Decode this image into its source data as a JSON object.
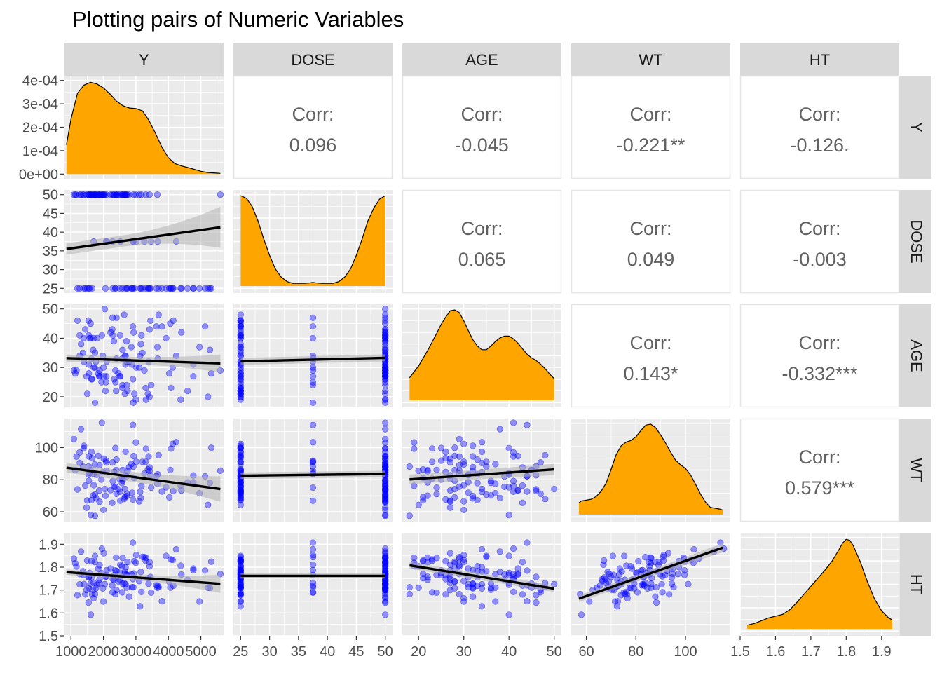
{
  "title": "Plotting pairs of Numeric Variables",
  "colors": {
    "panel_bg": "#ebebeb",
    "grid_major": "#ffffff",
    "strip_bg": "#d9d9d9",
    "density_fill": "#ffa500",
    "point": "#0000ff",
    "regression_line": "#000000",
    "ci_band": "#b3b3b3",
    "corr_text": "#616161",
    "tick_text": "#4d4d4d"
  },
  "chart_data": {
    "type": "scatter",
    "variables": [
      "Y",
      "DOSE",
      "AGE",
      "WT",
      "HT"
    ],
    "axes": {
      "Y": {
        "range": [
          800,
          5700
        ],
        "ticks": [
          1000,
          2000,
          3000,
          4000,
          5000
        ],
        "tick_labels": [
          "1000",
          "2000",
          "3000",
          "4000",
          "5000"
        ]
      },
      "DOSE": {
        "range": [
          23.75,
          51.25
        ],
        "ticks": [
          25,
          30,
          35,
          40,
          45,
          50
        ],
        "tick_labels": [
          "25",
          "30",
          "35",
          "40",
          "45",
          "50"
        ]
      },
      "AGE": {
        "range": [
          16.4,
          51.6
        ],
        "ticks": [
          20,
          30,
          40,
          50
        ],
        "tick_labels": [
          "20",
          "30",
          "40",
          "50"
        ]
      },
      "WT": {
        "range": [
          53.9,
          118.1
        ],
        "ticks": [
          60,
          80,
          100
        ],
        "tick_labels": [
          "60",
          "80",
          "100"
        ]
      },
      "HT": {
        "range": [
          1.5,
          1.95
        ],
        "ticks": [
          1.5,
          1.6,
          1.7,
          1.8,
          1.9
        ],
        "tick_labels": [
          "1.5",
          "1.6",
          "1.7",
          "1.8",
          "1.9"
        ]
      }
    },
    "density_y_axis": {
      "range": [
        -2e-05,
        0.00042
      ],
      "ticks": [
        0,
        0.0001,
        0.0002,
        0.0003,
        0.0004
      ],
      "tick_labels": [
        "0e+00",
        "1e-04",
        "2e-04",
        "3e-04",
        "4e-04"
      ]
    },
    "densities": {
      "Y": {
        "x": [
          860,
          1000,
          1200,
          1400,
          1600,
          1800,
          2000,
          2200,
          2400,
          2600,
          2800,
          3000,
          3200,
          3400,
          3600,
          3800,
          4000,
          4200,
          4400,
          4600,
          4800,
          5000,
          5200,
          5400,
          5600
        ],
        "y": [
          0.000125,
          0.000235,
          0.000345,
          0.00038,
          0.000392,
          0.000385,
          0.000368,
          0.000342,
          0.000312,
          0.000292,
          0.000282,
          0.00028,
          0.00027,
          0.00023,
          0.000175,
          0.000115,
          7e-05,
          4.5e-05,
          3.5e-05,
          2.8e-05,
          2e-05,
          1.2e-05,
          7e-06,
          5e-06,
          3e-06
        ]
      },
      "DOSE": {
        "x": [
          25,
          26,
          27,
          28,
          29,
          30,
          31,
          32,
          33,
          34,
          35,
          36,
          37,
          37.5,
          38,
          39,
          40,
          41,
          42,
          43,
          44,
          45,
          46,
          47,
          48,
          49,
          50
        ],
        "rel": [
          1.0,
          0.97,
          0.88,
          0.72,
          0.52,
          0.34,
          0.19,
          0.1,
          0.05,
          0.03,
          0.03,
          0.03,
          0.035,
          0.04,
          0.035,
          0.03,
          0.03,
          0.03,
          0.05,
          0.1,
          0.19,
          0.34,
          0.52,
          0.72,
          0.86,
          0.96,
          1.0
        ]
      },
      "AGE": {
        "x": [
          18,
          20,
          22,
          24,
          25,
          26,
          27,
          28,
          29,
          30,
          31,
          32,
          33,
          34,
          35,
          36,
          37,
          38,
          39,
          40,
          41,
          42,
          43,
          44,
          45,
          46,
          47,
          48,
          49,
          50
        ],
        "rel": [
          0.25,
          0.38,
          0.55,
          0.74,
          0.84,
          0.92,
          0.99,
          1.0,
          0.97,
          0.88,
          0.77,
          0.67,
          0.6,
          0.56,
          0.56,
          0.6,
          0.65,
          0.69,
          0.71,
          0.71,
          0.68,
          0.63,
          0.57,
          0.51,
          0.47,
          0.44,
          0.4,
          0.35,
          0.29,
          0.24
        ]
      },
      "WT": {
        "x": [
          57,
          58,
          60,
          62,
          64,
          66,
          68,
          70,
          72,
          74,
          76,
          78,
          80,
          82,
          84,
          86,
          88,
          90,
          92,
          94,
          96,
          98,
          100,
          102,
          104,
          106,
          108,
          110,
          112,
          114,
          115
        ],
        "rel": [
          0.13,
          0.15,
          0.16,
          0.17,
          0.2,
          0.26,
          0.35,
          0.5,
          0.66,
          0.76,
          0.8,
          0.82,
          0.86,
          0.93,
          0.99,
          1.0,
          0.96,
          0.88,
          0.79,
          0.69,
          0.6,
          0.55,
          0.51,
          0.44,
          0.34,
          0.23,
          0.14,
          0.08,
          0.07,
          0.06,
          0.05
        ]
      },
      "HT": {
        "x": [
          1.52,
          1.54,
          1.56,
          1.58,
          1.6,
          1.62,
          1.64,
          1.66,
          1.68,
          1.7,
          1.72,
          1.74,
          1.76,
          1.78,
          1.79,
          1.8,
          1.81,
          1.82,
          1.84,
          1.86,
          1.88,
          1.9,
          1.92,
          1.93
        ],
        "rel": [
          0.04,
          0.06,
          0.09,
          0.12,
          0.14,
          0.16,
          0.21,
          0.29,
          0.38,
          0.47,
          0.56,
          0.65,
          0.75,
          0.88,
          0.95,
          0.99,
          0.98,
          0.92,
          0.74,
          0.52,
          0.33,
          0.2,
          0.12,
          0.1
        ]
      }
    },
    "correlations": [
      {
        "row": "Y",
        "col": "DOSE",
        "label": "Corr:",
        "value": "0.096"
      },
      {
        "row": "Y",
        "col": "AGE",
        "label": "Corr:",
        "value": "-0.045"
      },
      {
        "row": "Y",
        "col": "WT",
        "label": "Corr:",
        "value": "-0.221**"
      },
      {
        "row": "Y",
        "col": "HT",
        "label": "Corr:",
        "value": "-0.126."
      },
      {
        "row": "DOSE",
        "col": "AGE",
        "label": "Corr:",
        "value": "0.065"
      },
      {
        "row": "DOSE",
        "col": "WT",
        "label": "Corr:",
        "value": "0.049"
      },
      {
        "row": "DOSE",
        "col": "HT",
        "label": "Corr:",
        "value": "-0.003"
      },
      {
        "row": "AGE",
        "col": "WT",
        "label": "Corr:",
        "value": "0.143*"
      },
      {
        "row": "AGE",
        "col": "HT",
        "label": "Corr:",
        "value": "-0.332***"
      },
      {
        "row": "WT",
        "col": "HT",
        "label": "Corr:",
        "value": "0.579***"
      }
    ],
    "regression_lines": [
      {
        "x": "Y",
        "y": "DOSE",
        "start": [
          860,
          35.5
        ],
        "end": [
          5600,
          41.3
        ],
        "ci_width": [
          1.5,
          5.5
        ]
      },
      {
        "x": "Y",
        "y": "AGE",
        "start": [
          860,
          33.2
        ],
        "end": [
          5600,
          31.4
        ],
        "ci_width": [
          1.2,
          3.0
        ]
      },
      {
        "x": "Y",
        "y": "WT",
        "start": [
          860,
          87.5
        ],
        "end": [
          5600,
          74.2
        ],
        "ci_width": [
          3.0,
          8.0
        ]
      },
      {
        "x": "Y",
        "y": "HT",
        "start": [
          860,
          1.778
        ],
        "end": [
          5600,
          1.727
        ],
        "ci_width": [
          0.012,
          0.04
        ]
      },
      {
        "x": "DOSE",
        "y": "AGE",
        "start": [
          25,
          32.1
        ],
        "end": [
          50,
          33.3
        ],
        "ci_width": [
          1.2,
          1.2
        ]
      },
      {
        "x": "DOSE",
        "y": "WT",
        "start": [
          25,
          82.5
        ],
        "end": [
          50,
          83.6
        ],
        "ci_width": [
          2.0,
          2.0
        ]
      },
      {
        "x": "DOSE",
        "y": "HT",
        "start": [
          25,
          1.762
        ],
        "end": [
          50,
          1.762
        ],
        "ci_width": [
          0.012,
          0.012
        ]
      },
      {
        "x": "AGE",
        "y": "WT",
        "start": [
          18,
          80.2
        ],
        "end": [
          50,
          86.4
        ],
        "ci_width": [
          3.0,
          3.5
        ]
      },
      {
        "x": "AGE",
        "y": "HT",
        "start": [
          18,
          1.808
        ],
        "end": [
          50,
          1.706
        ],
        "ci_width": [
          0.015,
          0.015
        ]
      },
      {
        "x": "WT",
        "y": "HT",
        "start": [
          57,
          1.662
        ],
        "end": [
          115,
          1.885
        ],
        "ci_width": [
          0.015,
          0.02
        ]
      }
    ],
    "observations": {
      "Y": [
        4400,
        2720,
        2880,
        1200,
        1550,
        4770,
        4080,
        3420,
        3300,
        4030,
        4150,
        5280,
        2060,
        1440,
        4380,
        1650,
        2290,
        3150,
        3130,
        3370,
        2370,
        3700,
        4130,
        5130,
        2950,
        1570,
        4770,
        4960,
        4060,
        2500,
        3390,
        1400,
        5220,
        5320,
        3200,
        4590,
        2370,
        3800,
        1270,
        3450,
        2680,
        2910,
        2860,
        2580,
        3630,
        1500,
        3930,
        2740,
        3010,
        2910,
        3470,
        2100,
        2920,
        3260,
        2080,
        2280,
        1700,
        2520,
        3670,
        4240,
        1700,
        2460,
        2590,
        3170,
        3660,
        2320,
        3000,
        1370,
        1630,
        1730,
        1130,
        2510,
        2040,
        1540,
        3420,
        2660,
        2090,
        2270,
        2400,
        1680,
        1880,
        1740,
        2570,
        2720,
        1940,
        3100,
        1800,
        2010,
        2390,
        2710,
        2660,
        2590,
        1480,
        2000,
        1550,
        1840,
        2220,
        1390,
        1310,
        1610,
        1600,
        1630,
        1090,
        1270,
        2330,
        2400,
        1870,
        1770,
        2680,
        1550,
        1980,
        1880,
        1740,
        5600,
        3310,
        2930,
        1950,
        1170,
        2640,
        2790
      ],
      "DOSE": [
        25,
        25,
        25,
        25,
        25,
        25,
        25,
        25,
        25,
        25,
        25,
        25,
        25,
        25,
        25,
        25,
        25,
        25,
        25,
        25,
        25,
        25,
        25,
        25,
        25,
        25,
        25,
        25,
        25,
        25,
        25,
        25,
        25,
        25,
        25,
        25,
        25,
        25,
        25,
        25,
        25,
        25,
        25,
        25,
        25,
        25,
        25,
        25,
        37.5,
        37.5,
        37.5,
        37.5,
        37.5,
        37.5,
        37.5,
        37.5,
        37.5,
        37.5,
        37.5,
        37.5,
        50,
        50,
        50,
        50,
        50,
        50,
        50,
        50,
        50,
        50,
        50,
        50,
        50,
        50,
        50,
        50,
        50,
        50,
        50,
        50,
        50,
        50,
        50,
        50,
        50,
        50,
        50,
        50,
        50,
        50,
        50,
        50,
        50,
        50,
        50,
        50,
        50,
        50,
        50,
        50,
        50,
        50,
        50,
        50,
        50,
        50,
        50,
        50,
        50,
        50,
        50,
        50,
        50,
        50,
        50,
        50,
        50,
        50,
        50,
        50
      ],
      "AGE": [
        42,
        24,
        31,
        46,
        41,
        27,
        23,
        20,
        23,
        28,
        46,
        36,
        22,
        43,
        19,
        26,
        41,
        38,
        34,
        21,
        25,
        48,
        30,
        44,
        21,
        40,
        31,
        37,
        45,
        27,
        32,
        32,
        20,
        28,
        35,
        22,
        29,
        44,
        41,
        46,
        34,
        26,
        37,
        23,
        44,
        21,
        40,
        22,
        30,
        44,
        24,
        32,
        18,
        29,
        25,
        47,
        40,
        27,
        33,
        34,
        30,
        28,
        36,
        41,
        37,
        39,
        19,
        35,
        33,
        30,
        28,
        41,
        50,
        46,
        43,
        21,
        27,
        43,
        47,
        36,
        29,
        35,
        33,
        32,
        25,
        30,
        40,
        27,
        22,
        39,
        34,
        24,
        27,
        30,
        31,
        28,
        42,
        40,
        38,
        40,
        45,
        26,
        29,
        34,
        26,
        33,
        27,
        32,
        31,
        28,
        34,
        27,
        18,
        29,
        19,
        42,
        41,
        29,
        48,
        32
      ],
      "WT": [
        73.3,
        71.0,
        71.9,
        74.0,
        94.5,
        82.7,
        99.4,
        85.5,
        91.1,
        69.0,
        73.0,
        78.0,
        70.0,
        76.4,
        76.2,
        93.4,
        79.2,
        68.6,
        72.4,
        86.4,
        99.7,
        95.2,
        102.3,
        82.1,
        81.0,
        84.3,
        78.4,
        71.6,
        86.1,
        80.4,
        94.5,
        101.1,
        64.3,
        99.9,
        91.1,
        78.3,
        75.6,
        72.7,
        97.0,
        82.8,
        97.4,
        67.7,
        89.7,
        80.6,
        82.3,
        67.1,
        75.3,
        85.3,
        91.2,
        114.1,
        75.1,
        85.6,
        88.2,
        83.8,
        91.8,
        90.7,
        83.7,
        66.9,
        83.4,
        103.4,
        76.6,
        74.1,
        79.3,
        76.1,
        77.5,
        75.6,
        103.2,
        88.2,
        67.3,
        89.5,
        86.0,
        72.5,
        74.2,
        88.3,
        87.6,
        69.2,
        90.7,
        65.6,
        71.2,
        70.2,
        89.1,
        70.7,
        77.9,
        69.8,
        80.1,
        66.5,
        83.1,
        93.1,
        86.0,
        82.0,
        74.3,
        86.1,
        62.6,
        61.2,
        83.2,
        94.8,
        73.5,
        99.6,
        111.5,
        58.0,
        86.1,
        97.3,
        105.3,
        90.4,
        84.8,
        92.5,
        73.3,
        68.4,
        82.8,
        79.3,
        84.7,
        66.3,
        57.5,
        85.6,
        99.3,
        94.7,
        115.5,
        94.4,
        68.0,
        87.8
      ],
      "HT": [
        1.768,
        1.766,
        1.712,
        1.678,
        1.755,
        1.787,
        1.834,
        1.804,
        1.828,
        1.736,
        1.719,
        1.709,
        1.758,
        1.681,
        1.806,
        1.681,
        1.748,
        1.779,
        1.629,
        1.752,
        1.786,
        1.712,
        1.832,
        1.785,
        1.826,
        1.775,
        1.794,
        1.65,
        1.711,
        1.776,
        1.728,
        1.726,
        1.71,
        1.824,
        1.845,
        1.745,
        1.682,
        1.651,
        1.77,
        1.757,
        1.8,
        1.748,
        1.769,
        1.69,
        1.721,
        1.829,
        1.849,
        1.822,
        1.853,
        1.907,
        1.689,
        1.787,
        1.712,
        1.844,
        1.765,
        1.69,
        1.732,
        1.811,
        1.719,
        1.878,
        1.664,
        1.738,
        1.728,
        1.692,
        1.71,
        1.745,
        1.819,
        1.782,
        1.755,
        1.822,
        1.817,
        1.745,
        1.726,
        1.645,
        1.822,
        1.771,
        1.76,
        1.72,
        1.7,
        1.701,
        1.809,
        1.849,
        1.804,
        1.711,
        1.774,
        1.739,
        1.723,
        1.861,
        1.842,
        1.768,
        1.781,
        1.84,
        1.7,
        1.65,
        1.756,
        1.793,
        1.794,
        1.766,
        1.868,
        1.592,
        1.728,
        1.826,
        1.837,
        1.725,
        1.765,
        1.783,
        1.73,
        1.708,
        1.726,
        1.708,
        1.707,
        1.746,
        1.682,
        1.77,
        1.841,
        1.772,
        1.881,
        1.803,
        1.73,
        1.671
      ]
    }
  }
}
